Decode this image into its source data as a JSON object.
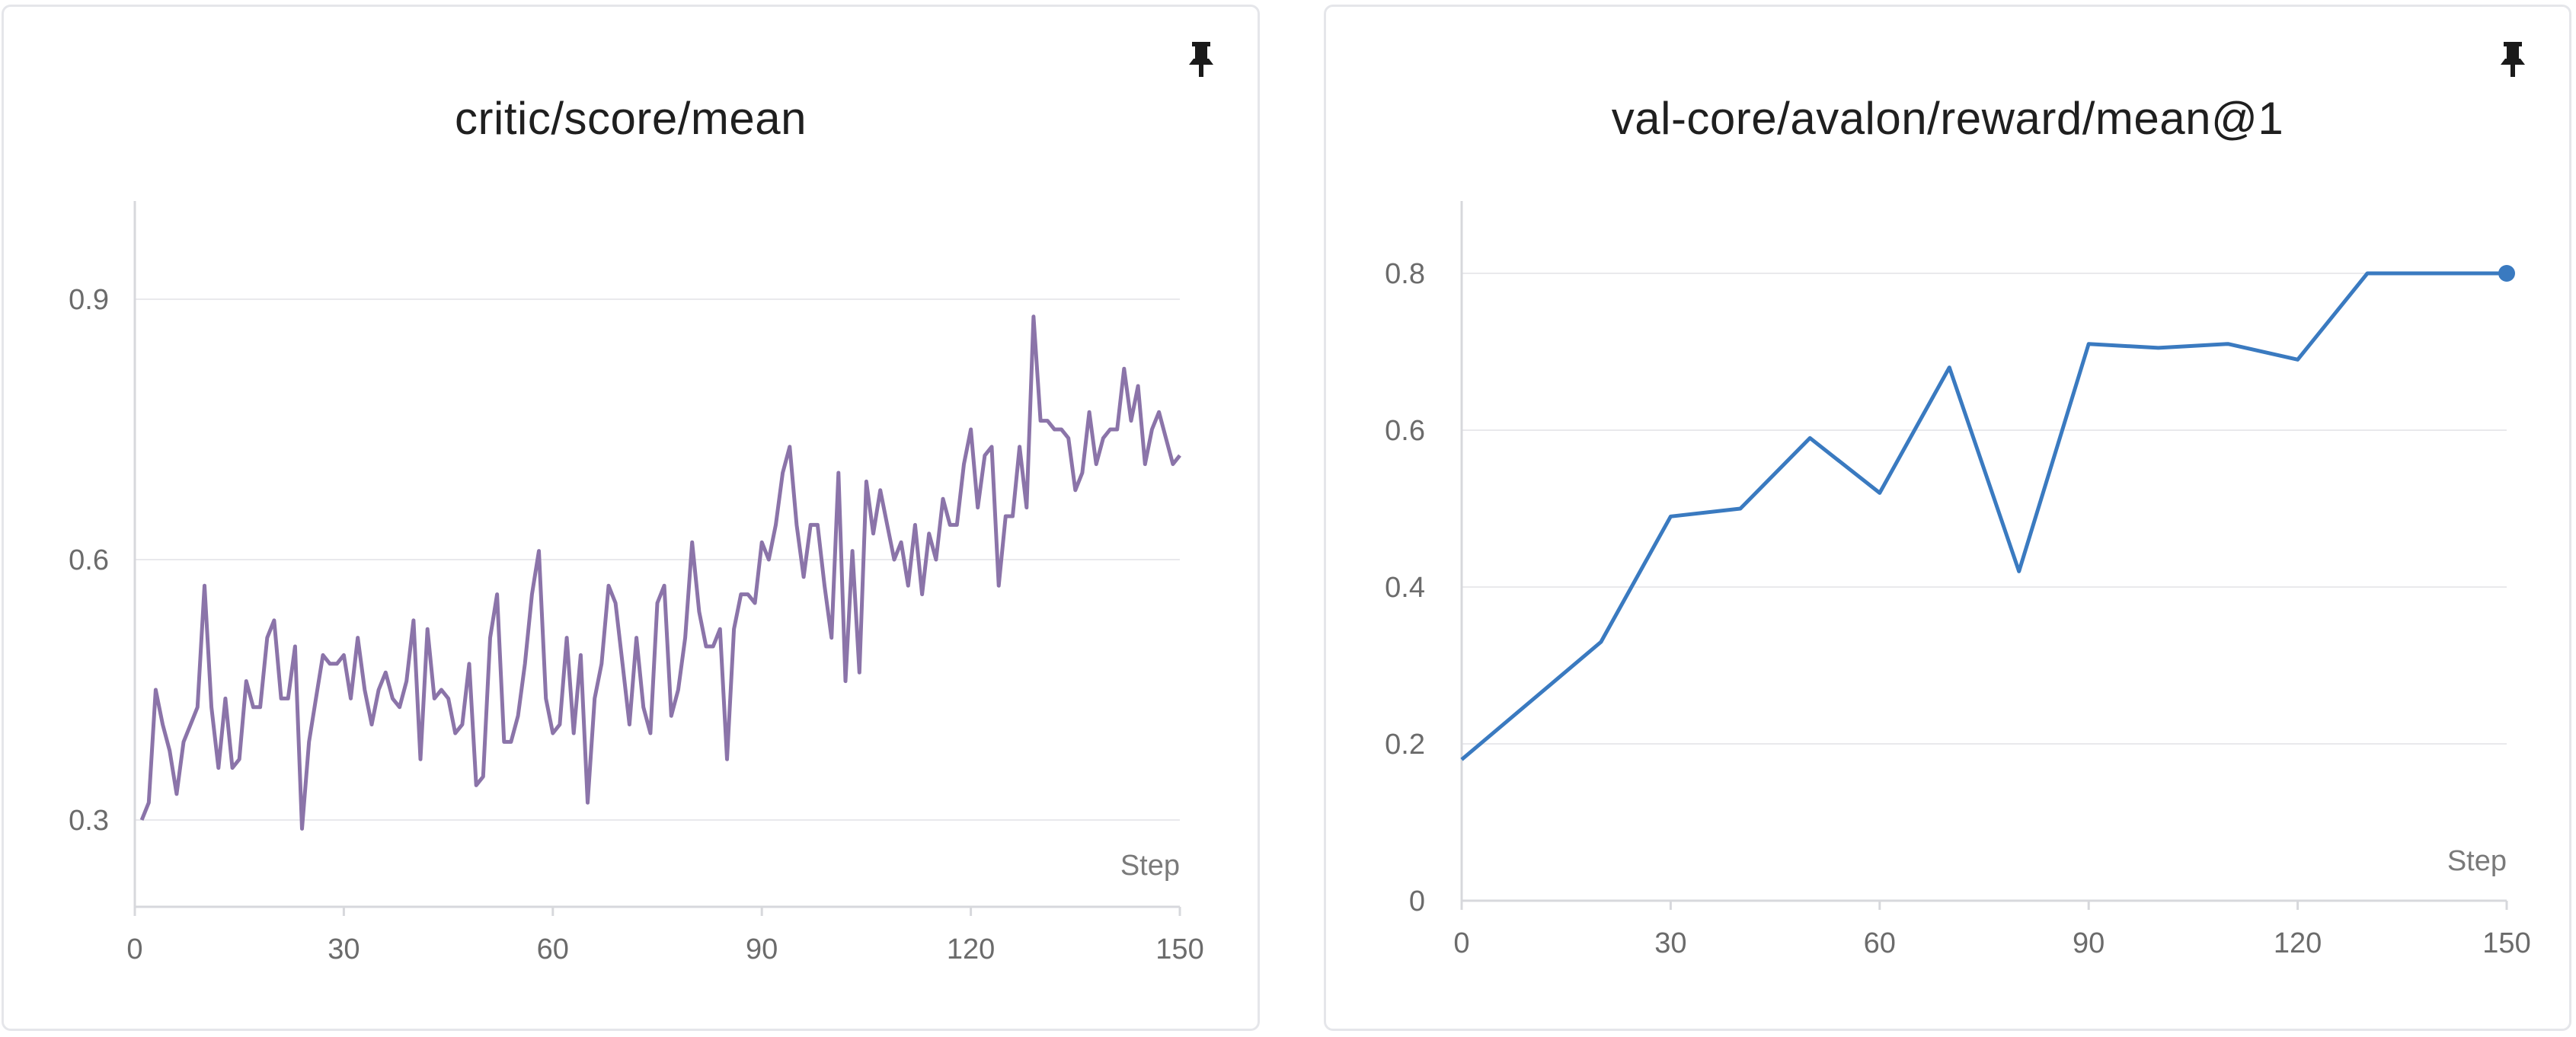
{
  "chart_data": [
    {
      "type": "line",
      "title": "critic/score/mean",
      "xlabel": "Step",
      "ylabel": "",
      "xlim": [
        0,
        150
      ],
      "ylim": [
        0.2,
        1.0
      ],
      "x_ticks": [
        "0",
        "30",
        "60",
        "90",
        "120",
        "150"
      ],
      "y_ticks": [
        "0.3",
        "0.6",
        "0.9"
      ],
      "grid": true,
      "legend": "none",
      "color": "#8b74a9",
      "series": [
        {
          "x": [
            1,
            2,
            3,
            4,
            5,
            6,
            7,
            8,
            9,
            10,
            11,
            12,
            13,
            14,
            15,
            16,
            17,
            18,
            19,
            20,
            21,
            22,
            23,
            24,
            25,
            26,
            27,
            28,
            29,
            30,
            31,
            32,
            33,
            34,
            35,
            36,
            37,
            38,
            39,
            40,
            41,
            42,
            43,
            44,
            45,
            46,
            47,
            48,
            49,
            50,
            51,
            52,
            53,
            54,
            55,
            56,
            57,
            58,
            59,
            60,
            61,
            62,
            63,
            64,
            65,
            66,
            67,
            68,
            69,
            70,
            71,
            72,
            73,
            74,
            75,
            76,
            77,
            78,
            79,
            80,
            81,
            82,
            83,
            84,
            85,
            86,
            87,
            88,
            89,
            90,
            91,
            92,
            93,
            94,
            95,
            96,
            97,
            98,
            99,
            100,
            101,
            102,
            103,
            104,
            105,
            106,
            107,
            108,
            109,
            110,
            111,
            112,
            113,
            114,
            115,
            116,
            117,
            118,
            119,
            120,
            121,
            122,
            123,
            124,
            125,
            126,
            127,
            128,
            129,
            130,
            131,
            132,
            133,
            134,
            135,
            136,
            137,
            138,
            139,
            140,
            141,
            142,
            143,
            144,
            145,
            146,
            147,
            148,
            149,
            150
          ],
          "values": [
            0.3,
            0.32,
            0.45,
            0.41,
            0.38,
            0.33,
            0.39,
            0.41,
            0.43,
            0.57,
            0.43,
            0.36,
            0.44,
            0.36,
            0.37,
            0.46,
            0.43,
            0.43,
            0.51,
            0.53,
            0.44,
            0.44,
            0.5,
            0.29,
            0.39,
            0.44,
            0.49,
            0.48,
            0.48,
            0.49,
            0.44,
            0.51,
            0.45,
            0.41,
            0.45,
            0.47,
            0.44,
            0.43,
            0.46,
            0.53,
            0.37,
            0.52,
            0.44,
            0.45,
            0.44,
            0.4,
            0.41,
            0.48,
            0.34,
            0.35,
            0.51,
            0.56,
            0.39,
            0.39,
            0.42,
            0.48,
            0.56,
            0.61,
            0.44,
            0.4,
            0.41,
            0.51,
            0.4,
            0.49,
            0.32,
            0.44,
            0.48,
            0.57,
            0.55,
            0.48,
            0.41,
            0.51,
            0.43,
            0.4,
            0.55,
            0.57,
            0.42,
            0.45,
            0.51,
            0.62,
            0.54,
            0.5,
            0.5,
            0.52,
            0.37,
            0.52,
            0.56,
            0.56,
            0.55,
            0.62,
            0.6,
            0.64,
            0.7,
            0.73,
            0.64,
            0.58,
            0.64,
            0.64,
            0.57,
            0.51,
            0.7,
            0.46,
            0.61,
            0.47,
            0.69,
            0.63,
            0.68,
            0.64,
            0.6,
            0.62,
            0.57,
            0.64,
            0.56,
            0.63,
            0.6,
            0.67,
            0.64,
            0.64,
            0.71,
            0.75,
            0.66,
            0.72,
            0.73,
            0.57,
            0.65,
            0.65,
            0.73,
            0.66,
            0.88,
            0.76,
            0.76,
            0.75,
            0.75,
            0.74,
            0.68,
            0.7,
            0.77,
            0.71,
            0.74,
            0.75,
            0.75,
            0.82,
            0.76,
            0.8,
            0.71,
            0.75,
            0.77,
            0.74,
            0.71,
            0.72
          ]
        }
      ]
    },
    {
      "type": "line",
      "title": "val-core/avalon/reward/mean@1",
      "xlabel": "Step",
      "ylabel": "",
      "xlim": [
        0,
        150
      ],
      "ylim": [
        0,
        0.9
      ],
      "x_ticks": [
        "0",
        "30",
        "60",
        "90",
        "120",
        "150"
      ],
      "y_ticks": [
        "0",
        "0.2",
        "0.4",
        "0.6",
        "0.8"
      ],
      "grid": true,
      "legend": "none",
      "color": "#3a7ac0",
      "series": [
        {
          "x": [
            0,
            10,
            20,
            30,
            40,
            50,
            60,
            70,
            80,
            90,
            100,
            110,
            120,
            130,
            150
          ],
          "values": [
            0.18,
            0.255,
            0.33,
            0.49,
            0.5,
            0.59,
            0.52,
            0.68,
            0.42,
            0.71,
            0.705,
            0.71,
            0.69,
            0.8,
            0.8
          ]
        }
      ]
    }
  ]
}
